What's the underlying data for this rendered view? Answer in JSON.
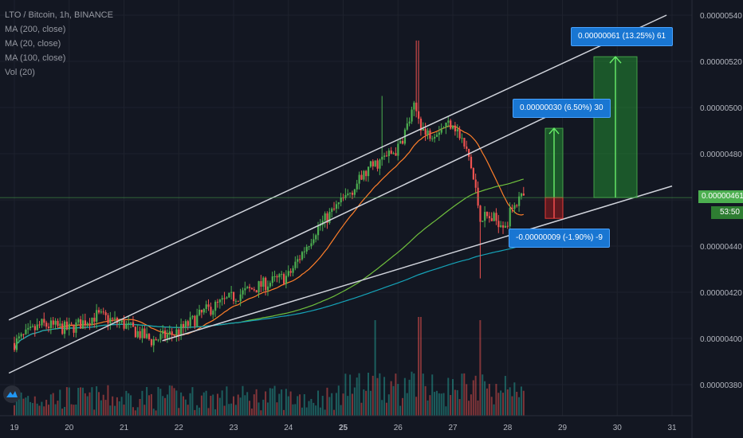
{
  "header": {
    "symbol": "LTO / Bitcoin, 1h, BINANCE",
    "indicators": [
      "MA (200, close)",
      "MA (20, close)",
      "MA (100, close)",
      "Vol (20)"
    ]
  },
  "colors": {
    "background": "#131722",
    "up": "#26a69a",
    "down": "#ef5350",
    "up_candle": "#4caf50",
    "ma20": "#ff7f2a",
    "ma100": "#15a3b8",
    "ma200": "#6fbf3d",
    "channel": "#d1d4dc",
    "axis_text": "#b2b5be"
  },
  "measurements": [
    {
      "label": "0.00000061 (13.25%) 61"
    },
    {
      "label": "0.00000030 (6.50%) 30"
    },
    {
      "label": "-0.00000009 (-1.90%) -9"
    }
  ],
  "price_tags": {
    "last": "0.00000461",
    "countdown": "53:50"
  },
  "chart_data": {
    "type": "candlestick",
    "title": "LTO / Bitcoin, 1h, BINANCE",
    "x_ticks": [
      "19",
      "20",
      "21",
      "22",
      "23",
      "24",
      "25",
      "26",
      "27",
      "28",
      "29",
      "30",
      "31"
    ],
    "y_ticks": [
      "0.00000380",
      "0.00000400",
      "0.00000420",
      "0.00000440",
      "0.00000460",
      "0.00000480",
      "0.00000500",
      "0.00000520",
      "0.00000540"
    ],
    "y_range": [
      3.69e-06,
      5.43e-06
    ],
    "x_range": [
      19.0,
      31.0
    ],
    "last_price": 4.61e-06,
    "anchor_points": [
      {
        "day": 19.0,
        "price": 3.98e-06
      },
      {
        "day": 19.5,
        "price": 4.06e-06
      },
      {
        "day": 20.0,
        "price": 4.04e-06
      },
      {
        "day": 20.5,
        "price": 4.1e-06
      },
      {
        "day": 21.0,
        "price": 4.06e-06
      },
      {
        "day": 21.5,
        "price": 3.99e-06
      },
      {
        "day": 22.0,
        "price": 4.03e-06
      },
      {
        "day": 22.5,
        "price": 4.12e-06
      },
      {
        "day": 23.0,
        "price": 4.18e-06
      },
      {
        "day": 23.5,
        "price": 4.23e-06
      },
      {
        "day": 24.0,
        "price": 4.27e-06
      },
      {
        "day": 24.5,
        "price": 4.47e-06
      },
      {
        "day": 25.0,
        "price": 4.6e-06
      },
      {
        "day": 25.5,
        "price": 4.74e-06
      },
      {
        "day": 26.0,
        "price": 4.82e-06
      },
      {
        "day": 26.3,
        "price": 5e-06
      },
      {
        "day": 26.5,
        "price": 4.88e-06
      },
      {
        "day": 27.0,
        "price": 4.94e-06
      },
      {
        "day": 27.3,
        "price": 4.78e-06
      },
      {
        "day": 27.5,
        "price": 4.53e-06
      },
      {
        "day": 28.0,
        "price": 4.5e-06
      },
      {
        "day": 28.1,
        "price": 4.59e-06
      },
      {
        "day": 28.3,
        "price": 4.61e-06
      }
    ],
    "channel_lines": [
      {
        "from": {
          "day": 18.9,
          "price": 4.08e-06
        },
        "to": {
          "day": 30.9,
          "price": 5.4e-06
        }
      },
      {
        "from": {
          "day": 18.9,
          "price": 3.85e-06
        },
        "to": {
          "day": 28.8,
          "price": 4.97e-06
        }
      },
      {
        "from": {
          "day": 21.7,
          "price": 3.99e-06
        },
        "to": {
          "day": 31.0,
          "price": 4.66e-06
        }
      }
    ]
  }
}
